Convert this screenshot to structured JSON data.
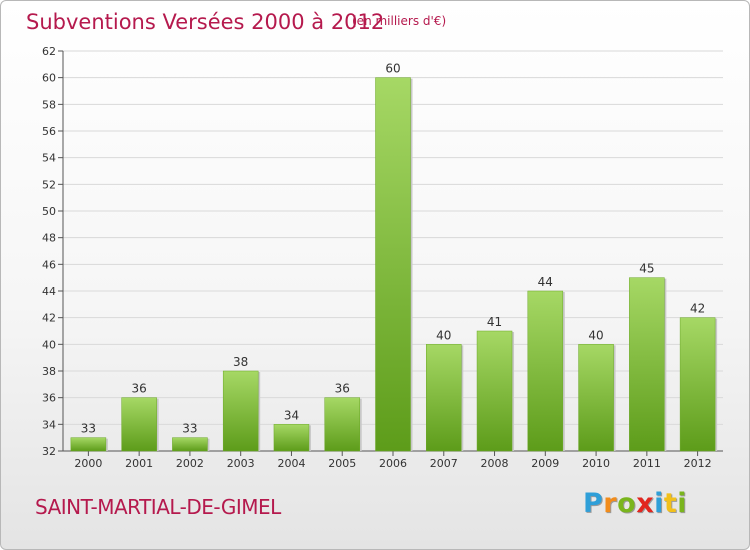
{
  "header": {
    "title": "Subventions Versées 2000 à 2012",
    "unit": "(en milliers d'€)"
  },
  "footer": {
    "city": "SAINT-MARTIAL-DE-GIMEL",
    "logo_letters": [
      {
        "ch": "P",
        "color": "#2f9fd8"
      },
      {
        "ch": "r",
        "color": "#f28c1b"
      },
      {
        "ch": "o",
        "color": "#7ab51d"
      },
      {
        "ch": "x",
        "color": "#e2261f"
      },
      {
        "ch": "i",
        "color": "#2f9fd8"
      },
      {
        "ch": "t",
        "color": "#f2c01b"
      },
      {
        "ch": "i",
        "color": "#7ab51d"
      }
    ]
  },
  "colors": {
    "title": "#b5194d",
    "bar_light": "#9fd45a",
    "bar_dark": "#5a9a18",
    "grid": "#d9d9d9",
    "axis": "#555555"
  },
  "chart_data": {
    "type": "bar",
    "categories": [
      "2000",
      "2001",
      "2002",
      "2003",
      "2004",
      "2005",
      "2006",
      "2007",
      "2008",
      "2009",
      "2010",
      "2011",
      "2012"
    ],
    "values": [
      33,
      36,
      33,
      38,
      34,
      36,
      60,
      40,
      41,
      44,
      40,
      45,
      42
    ],
    "title": "Subventions Versées 2000 à 2012",
    "subtitle": "(en milliers d'€)",
    "ylim": [
      32,
      62
    ],
    "yticks": [
      32,
      34,
      36,
      38,
      40,
      42,
      44,
      46,
      48,
      50,
      52,
      54,
      56,
      58,
      60,
      62
    ],
    "grid": true,
    "data_labels": true
  }
}
